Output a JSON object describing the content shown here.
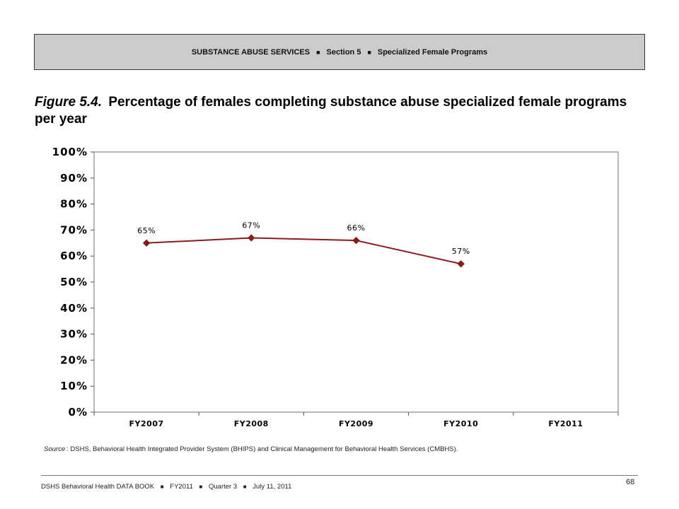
{
  "header": {
    "banner": [
      "SUBSTANCE ABUSE SERVICES",
      "Section 5",
      "Specialized Female Programs"
    ],
    "separator": "■"
  },
  "figure": {
    "number": "Figure 5.4.",
    "title": "Percentage of females completing substance abuse specialized female programs per year"
  },
  "chart_data": {
    "type": "line",
    "categories": [
      "FY2007",
      "FY2008",
      "FY2009",
      "FY2010",
      "FY2011"
    ],
    "series": [
      {
        "values": [
          65,
          67,
          66,
          57,
          null
        ],
        "labels": [
          "65%",
          "67%",
          "66%",
          "57%",
          null
        ]
      }
    ],
    "yticks": [
      "0%",
      "10%",
      "20%",
      "30%",
      "40%",
      "50%",
      "60%",
      "70%",
      "80%",
      "90%",
      "100%"
    ],
    "ylim": [
      0,
      100
    ],
    "grid": false,
    "legend": "none",
    "colors": {
      "line": "#8b1a1a",
      "marker": "#8b1a1a",
      "frame": "#888888"
    }
  },
  "source": {
    "label": "Source",
    "text": ": DSHS, Behavioral Health Integrated Provider System (BHIPS) and Clinical Management for Behavioral Health Services (CMBHS)."
  },
  "footer": {
    "parts": [
      "DSHS Behavioral Health DATA BOOK",
      "FY2011",
      "Quarter 3",
      "July 11, 2011"
    ],
    "separator": "■",
    "page": "68"
  }
}
